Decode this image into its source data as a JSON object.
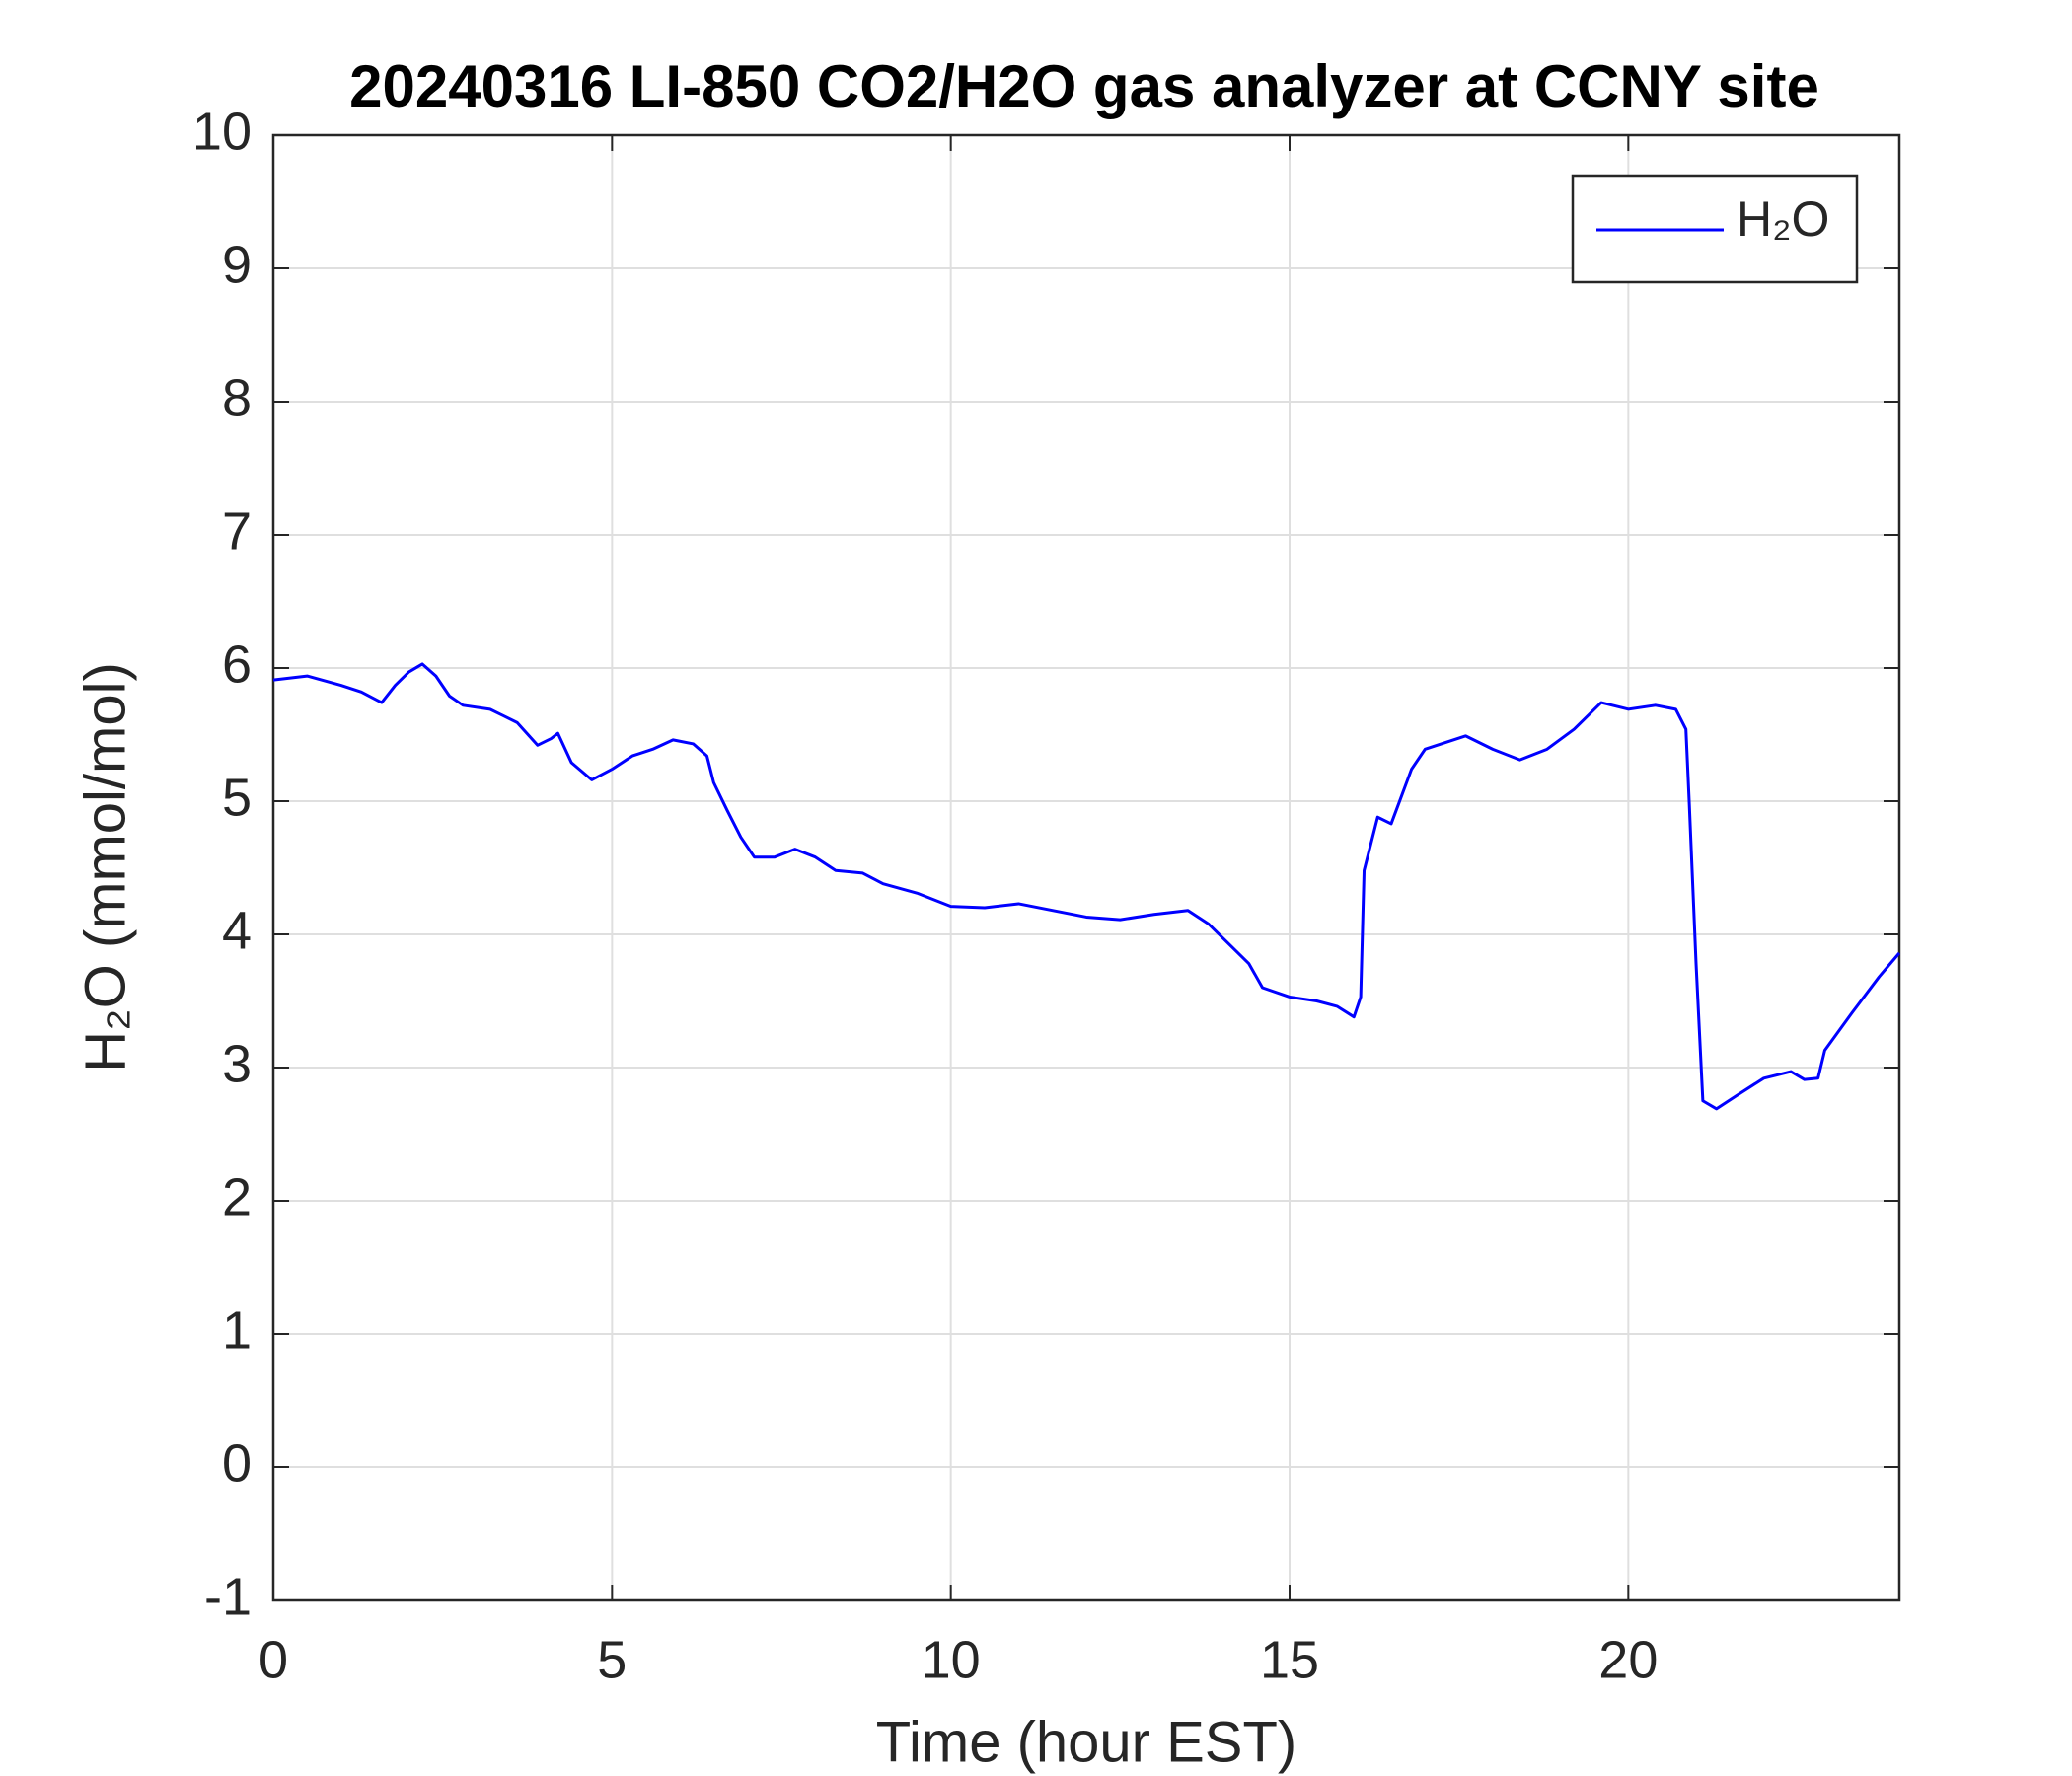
{
  "chart_data": {
    "type": "line",
    "title": "20240316 LI-850 CO2/H2O gas analyzer at CCNY site",
    "x_label": "Time (hour EST)",
    "y_label": "H₂O (mmol/mol)",
    "xlim": [
      0,
      24
    ],
    "xticks": [
      0,
      5,
      10,
      15,
      20
    ],
    "ylim": [
      -1,
      10
    ],
    "yticks": [
      -1,
      0,
      1,
      2,
      3,
      4,
      5,
      6,
      7,
      8,
      9,
      10
    ],
    "grid": true,
    "legend": "upper right",
    "x": [
      0,
      0.5,
      1,
      1.3,
      1.6,
      1.8,
      2.0,
      2.2,
      2.4,
      2.6,
      2.8,
      3.2,
      3.6,
      3.9,
      4.1,
      4.2,
      4.4,
      4.7,
      5.0,
      5.3,
      5.6,
      5.9,
      6.2,
      6.4,
      6.5,
      6.7,
      6.9,
      7.1,
      7.4,
      7.7,
      8.0,
      8.3,
      8.7,
      9.0,
      9.5,
      10.0,
      10.5,
      11.0,
      11.5,
      12.0,
      12.5,
      13.0,
      13.5,
      13.8,
      14.1,
      14.4,
      14.6,
      15.0,
      15.4,
      15.7,
      15.95,
      16.05,
      16.1,
      16.3,
      16.5,
      16.8,
      17.0,
      17.3,
      17.6,
      18.0,
      18.4,
      18.8,
      19.2,
      19.6,
      20.0,
      20.4,
      20.7,
      20.85,
      20.9,
      21.0,
      21.1,
      21.3,
      21.6,
      22.0,
      22.4,
      22.6,
      22.8,
      22.9,
      23.3,
      23.7,
      24.0
    ],
    "series": [
      {
        "name": "H₂O",
        "color": "#0000ff",
        "values": [
          5.91,
          5.94,
          5.87,
          5.82,
          5.74,
          5.87,
          5.97,
          6.03,
          5.94,
          5.79,
          5.72,
          5.69,
          5.59,
          5.42,
          5.47,
          5.51,
          5.29,
          5.16,
          5.24,
          5.34,
          5.39,
          5.46,
          5.43,
          5.34,
          5.14,
          4.93,
          4.73,
          4.58,
          4.58,
          4.64,
          4.58,
          4.48,
          4.46,
          4.38,
          4.31,
          4.21,
          4.2,
          4.23,
          4.18,
          4.13,
          4.11,
          4.15,
          4.18,
          4.08,
          3.93,
          3.78,
          3.6,
          3.53,
          3.5,
          3.46,
          3.38,
          3.53,
          4.48,
          4.88,
          4.83,
          5.24,
          5.39,
          5.44,
          5.49,
          5.39,
          5.31,
          5.39,
          5.54,
          5.74,
          5.69,
          5.72,
          5.69,
          5.54,
          4.98,
          3.78,
          2.75,
          2.69,
          2.79,
          2.92,
          2.97,
          2.91,
          2.92,
          3.13,
          3.41,
          3.68,
          3.86
        ]
      }
    ]
  }
}
